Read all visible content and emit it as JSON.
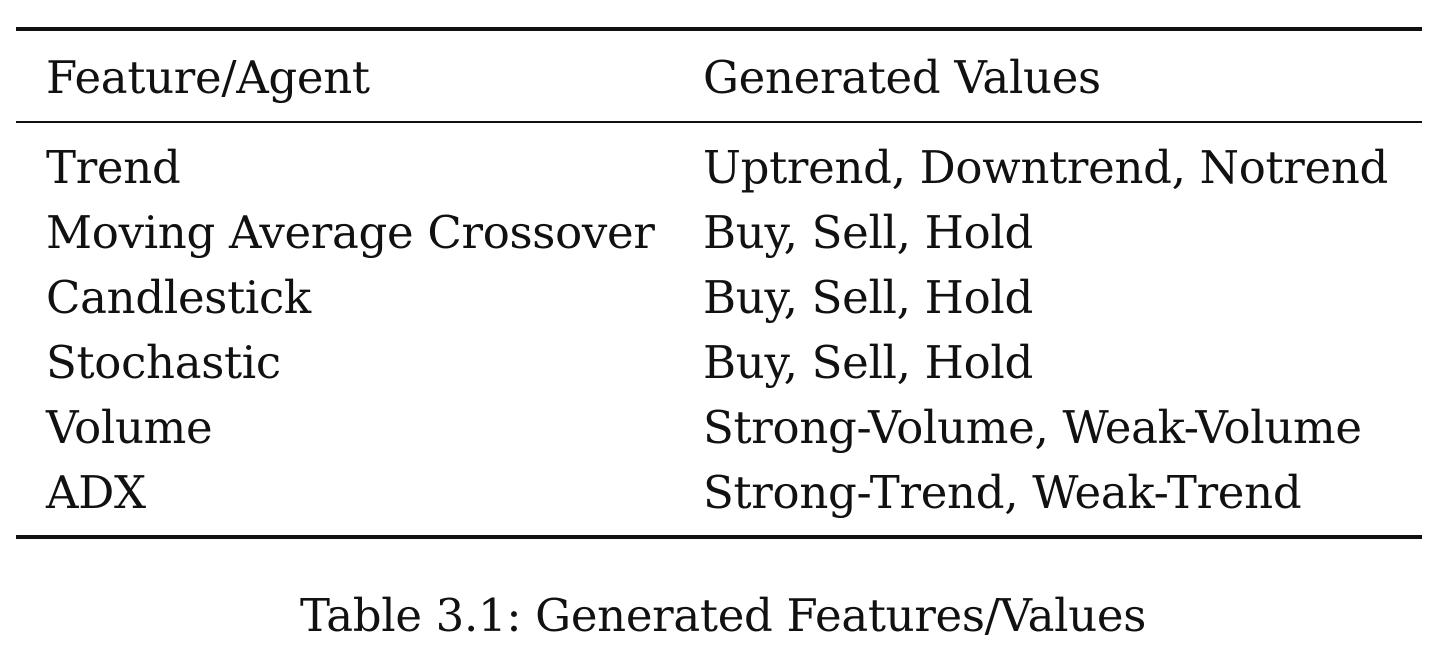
{
  "table": {
    "headers": [
      "Feature/Agent",
      "Generated Values"
    ],
    "rows": [
      [
        "Trend",
        "Uptrend, Downtrend, Notrend"
      ],
      [
        "Moving Average Crossover",
        "Buy, Sell, Hold"
      ],
      [
        "Candlestick",
        "Buy, Sell, Hold"
      ],
      [
        "Stochastic",
        "Buy, Sell, Hold"
      ],
      [
        "Volume",
        "Strong-Volume, Weak-Volume"
      ],
      [
        "ADX",
        "Strong-Trend, Weak-Trend"
      ]
    ],
    "caption": "Table 3.1: Generated Features/Values"
  }
}
